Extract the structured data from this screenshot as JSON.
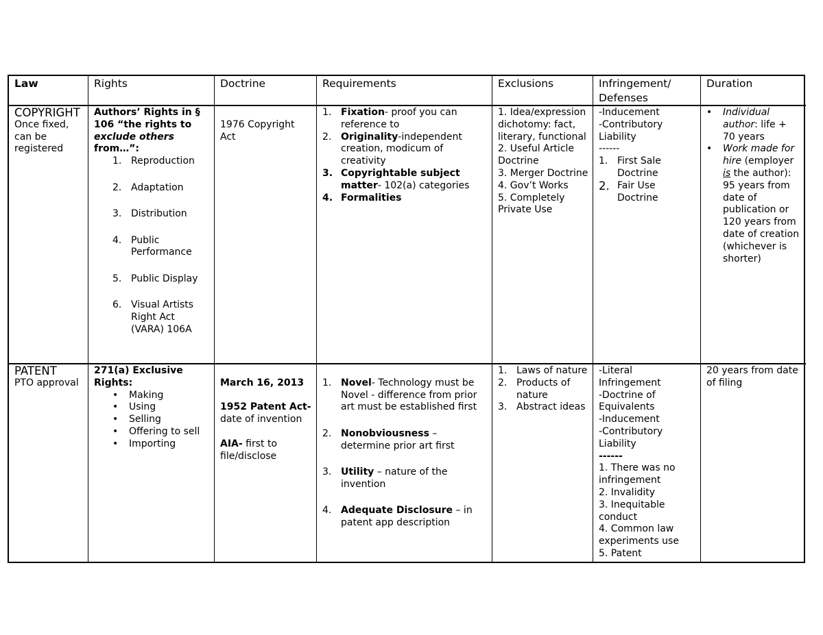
{
  "headers": [
    "Law",
    "Rights",
    "Doctrine",
    "Requirements",
    "Exclusions",
    "Infringement/ Defenses",
    "Duration"
  ],
  "copyright": {
    "law_title": "COPYRIGHT",
    "law_note": "Once fixed, can be registered",
    "rights_heading_1": "Authors’ Rights in § 106 “the rights to ",
    "rights_heading_italic": "exclude others",
    "rights_heading_2": " from…”:",
    "rights_items": [
      "Reproduction",
      "Adaptation",
      "Distribution",
      "Public Performance",
      "Public Display",
      "Visual Artists Right Act (VARA) 106A"
    ],
    "doctrine": "1976 Copyright Act",
    "requirements": [
      {
        "num": "1.",
        "bold": "Fixation",
        "text": "- proof you can reference to"
      },
      {
        "num": "2.",
        "bold": "Originality",
        "text": "-independent creation, modicum of creativity"
      },
      {
        "num": "3.",
        "bold": "Copyrightable subject matter",
        "text": "- 102(a) categories"
      },
      {
        "num": "4.",
        "bold": "Formalities",
        "text": ""
      }
    ],
    "exclusions": [
      "1. Idea/expression dichotomy: fact, literary, functional",
      "2. Useful Article Doctrine",
      "3. Merger Doctrine",
      "4. Gov’t Works",
      "5. Completely Private Use"
    ],
    "infringement": [
      "-Inducement",
      "-Contributory Liability",
      "------"
    ],
    "defenses": [
      {
        "num": "1.",
        "text": "First Sale Doctrine"
      },
      {
        "num": "2.",
        "text": "Fair Use Doctrine"
      }
    ],
    "duration": [
      {
        "italic": "Individual author",
        "text": ": life + 70 years"
      },
      {
        "italic": "Work made for hire",
        "text_1": " (employer ",
        "underline": "is",
        "text_2": " the author): 95 years from date of publication or 120 years from date of creation (whichever is shorter)"
      }
    ]
  },
  "patent": {
    "law_title": "PATENT",
    "law_note": "PTO approval",
    "rights_heading": "271(a) Exclusive Rights:",
    "rights_items": [
      "Making",
      "Using",
      "Selling",
      "Offering to sell",
      "Importing"
    ],
    "doctrine_date": "March 16, 2013",
    "doctrine_act_bold": "1952 Patent Act-",
    "doctrine_act_text": " date of invention",
    "doctrine_aia_bold": "AIA-",
    "doctrine_aia_text": " first to file/disclose",
    "requirements": [
      {
        "num": "1.",
        "bold": "Novel",
        "text": "- Technology must be Novel - difference from prior art must be established first"
      },
      {
        "num": "2.",
        "bold": "Nonobviousness",
        "text": " – determine prior art first"
      },
      {
        "num": "3.",
        "bold": "Utility",
        "text": " – nature of the invention"
      },
      {
        "num": "4.",
        "bold": "Adequate Disclosure",
        "text": " – in patent app description"
      }
    ],
    "exclusions": [
      {
        "num": "1.",
        "text": "Laws of nature"
      },
      {
        "num": "2.",
        "text": "Products of nature"
      },
      {
        "num": "3.",
        "text": "Abstract ideas"
      }
    ],
    "infringement": [
      "-Literal Infringement",
      "-Doctrine of Equivalents",
      "-Inducement",
      "-Contributory Liability"
    ],
    "separator": "------",
    "defenses": [
      "1. There was no infringement",
      "2. Invalidity",
      "3. Inequitable conduct",
      "4. Common law experiments use",
      "5. Patent"
    ],
    "duration": "20 years from date of filing"
  }
}
